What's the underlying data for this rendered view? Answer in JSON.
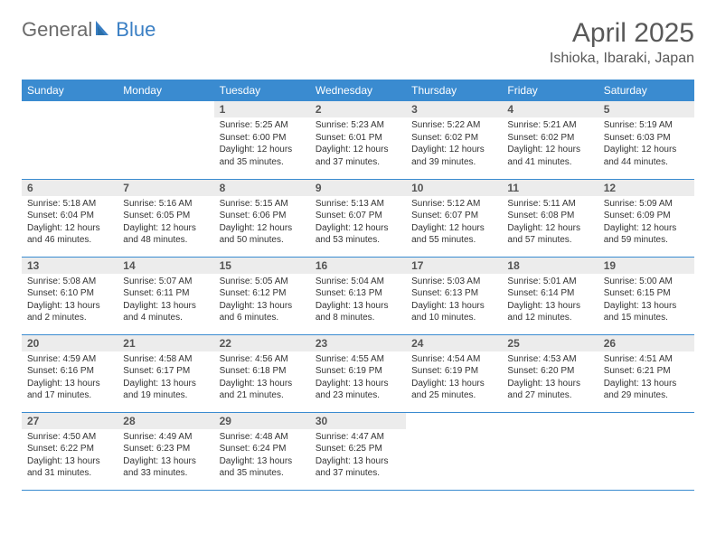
{
  "brand": {
    "part1": "General",
    "part2": "Blue"
  },
  "title": "April 2025",
  "location": "Ishioka, Ibaraki, Japan",
  "colors": {
    "header_bg": "#3a8bd0",
    "header_text": "#ffffff",
    "daynum_bg": "#ececec",
    "daynum_text": "#555555",
    "body_text": "#333333",
    "title_text": "#595959",
    "row_border": "#3a8bd0",
    "logo_gray": "#6b6b6b",
    "logo_blue": "#3a7fc4"
  },
  "day_names": [
    "Sunday",
    "Monday",
    "Tuesday",
    "Wednesday",
    "Thursday",
    "Friday",
    "Saturday"
  ],
  "weeks": [
    [
      null,
      null,
      {
        "n": "1",
        "sr": "Sunrise: 5:25 AM",
        "ss": "Sunset: 6:00 PM",
        "d1": "Daylight: 12 hours",
        "d2": "and 35 minutes."
      },
      {
        "n": "2",
        "sr": "Sunrise: 5:23 AM",
        "ss": "Sunset: 6:01 PM",
        "d1": "Daylight: 12 hours",
        "d2": "and 37 minutes."
      },
      {
        "n": "3",
        "sr": "Sunrise: 5:22 AM",
        "ss": "Sunset: 6:02 PM",
        "d1": "Daylight: 12 hours",
        "d2": "and 39 minutes."
      },
      {
        "n": "4",
        "sr": "Sunrise: 5:21 AM",
        "ss": "Sunset: 6:02 PM",
        "d1": "Daylight: 12 hours",
        "d2": "and 41 minutes."
      },
      {
        "n": "5",
        "sr": "Sunrise: 5:19 AM",
        "ss": "Sunset: 6:03 PM",
        "d1": "Daylight: 12 hours",
        "d2": "and 44 minutes."
      }
    ],
    [
      {
        "n": "6",
        "sr": "Sunrise: 5:18 AM",
        "ss": "Sunset: 6:04 PM",
        "d1": "Daylight: 12 hours",
        "d2": "and 46 minutes."
      },
      {
        "n": "7",
        "sr": "Sunrise: 5:16 AM",
        "ss": "Sunset: 6:05 PM",
        "d1": "Daylight: 12 hours",
        "d2": "and 48 minutes."
      },
      {
        "n": "8",
        "sr": "Sunrise: 5:15 AM",
        "ss": "Sunset: 6:06 PM",
        "d1": "Daylight: 12 hours",
        "d2": "and 50 minutes."
      },
      {
        "n": "9",
        "sr": "Sunrise: 5:13 AM",
        "ss": "Sunset: 6:07 PM",
        "d1": "Daylight: 12 hours",
        "d2": "and 53 minutes."
      },
      {
        "n": "10",
        "sr": "Sunrise: 5:12 AM",
        "ss": "Sunset: 6:07 PM",
        "d1": "Daylight: 12 hours",
        "d2": "and 55 minutes."
      },
      {
        "n": "11",
        "sr": "Sunrise: 5:11 AM",
        "ss": "Sunset: 6:08 PM",
        "d1": "Daylight: 12 hours",
        "d2": "and 57 minutes."
      },
      {
        "n": "12",
        "sr": "Sunrise: 5:09 AM",
        "ss": "Sunset: 6:09 PM",
        "d1": "Daylight: 12 hours",
        "d2": "and 59 minutes."
      }
    ],
    [
      {
        "n": "13",
        "sr": "Sunrise: 5:08 AM",
        "ss": "Sunset: 6:10 PM",
        "d1": "Daylight: 13 hours",
        "d2": "and 2 minutes."
      },
      {
        "n": "14",
        "sr": "Sunrise: 5:07 AM",
        "ss": "Sunset: 6:11 PM",
        "d1": "Daylight: 13 hours",
        "d2": "and 4 minutes."
      },
      {
        "n": "15",
        "sr": "Sunrise: 5:05 AM",
        "ss": "Sunset: 6:12 PM",
        "d1": "Daylight: 13 hours",
        "d2": "and 6 minutes."
      },
      {
        "n": "16",
        "sr": "Sunrise: 5:04 AM",
        "ss": "Sunset: 6:13 PM",
        "d1": "Daylight: 13 hours",
        "d2": "and 8 minutes."
      },
      {
        "n": "17",
        "sr": "Sunrise: 5:03 AM",
        "ss": "Sunset: 6:13 PM",
        "d1": "Daylight: 13 hours",
        "d2": "and 10 minutes."
      },
      {
        "n": "18",
        "sr": "Sunrise: 5:01 AM",
        "ss": "Sunset: 6:14 PM",
        "d1": "Daylight: 13 hours",
        "d2": "and 12 minutes."
      },
      {
        "n": "19",
        "sr": "Sunrise: 5:00 AM",
        "ss": "Sunset: 6:15 PM",
        "d1": "Daylight: 13 hours",
        "d2": "and 15 minutes."
      }
    ],
    [
      {
        "n": "20",
        "sr": "Sunrise: 4:59 AM",
        "ss": "Sunset: 6:16 PM",
        "d1": "Daylight: 13 hours",
        "d2": "and 17 minutes."
      },
      {
        "n": "21",
        "sr": "Sunrise: 4:58 AM",
        "ss": "Sunset: 6:17 PM",
        "d1": "Daylight: 13 hours",
        "d2": "and 19 minutes."
      },
      {
        "n": "22",
        "sr": "Sunrise: 4:56 AM",
        "ss": "Sunset: 6:18 PM",
        "d1": "Daylight: 13 hours",
        "d2": "and 21 minutes."
      },
      {
        "n": "23",
        "sr": "Sunrise: 4:55 AM",
        "ss": "Sunset: 6:19 PM",
        "d1": "Daylight: 13 hours",
        "d2": "and 23 minutes."
      },
      {
        "n": "24",
        "sr": "Sunrise: 4:54 AM",
        "ss": "Sunset: 6:19 PM",
        "d1": "Daylight: 13 hours",
        "d2": "and 25 minutes."
      },
      {
        "n": "25",
        "sr": "Sunrise: 4:53 AM",
        "ss": "Sunset: 6:20 PM",
        "d1": "Daylight: 13 hours",
        "d2": "and 27 minutes."
      },
      {
        "n": "26",
        "sr": "Sunrise: 4:51 AM",
        "ss": "Sunset: 6:21 PM",
        "d1": "Daylight: 13 hours",
        "d2": "and 29 minutes."
      }
    ],
    [
      {
        "n": "27",
        "sr": "Sunrise: 4:50 AM",
        "ss": "Sunset: 6:22 PM",
        "d1": "Daylight: 13 hours",
        "d2": "and 31 minutes."
      },
      {
        "n": "28",
        "sr": "Sunrise: 4:49 AM",
        "ss": "Sunset: 6:23 PM",
        "d1": "Daylight: 13 hours",
        "d2": "and 33 minutes."
      },
      {
        "n": "29",
        "sr": "Sunrise: 4:48 AM",
        "ss": "Sunset: 6:24 PM",
        "d1": "Daylight: 13 hours",
        "d2": "and 35 minutes."
      },
      {
        "n": "30",
        "sr": "Sunrise: 4:47 AM",
        "ss": "Sunset: 6:25 PM",
        "d1": "Daylight: 13 hours",
        "d2": "and 37 minutes."
      },
      null,
      null,
      null
    ]
  ]
}
